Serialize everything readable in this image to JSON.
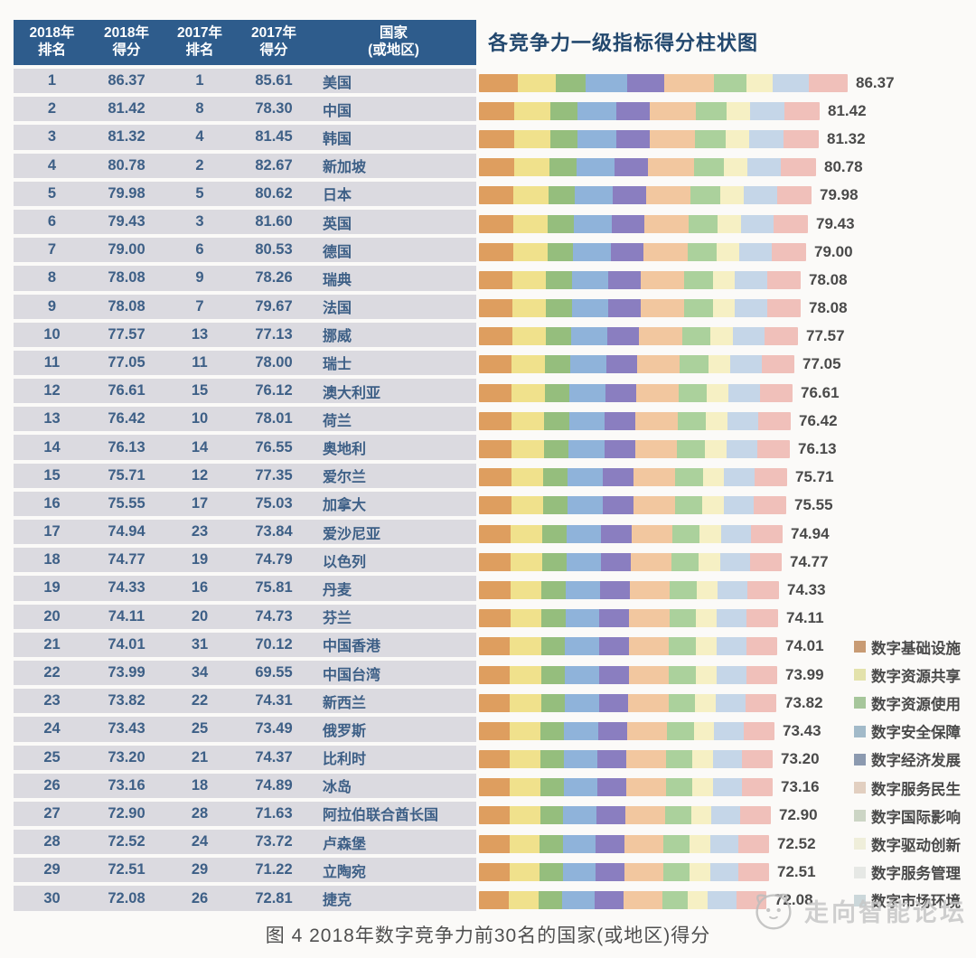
{
  "page": {
    "background": "#fbfaf8"
  },
  "table": {
    "header_bg": "#2e5c8c",
    "headers": [
      {
        "line1": "2018年",
        "line2": "排名"
      },
      {
        "line1": "2018年",
        "line2": "得分"
      },
      {
        "line1": "2017年",
        "line2": "排名"
      },
      {
        "line1": "2017年",
        "line2": "得分"
      },
      {
        "line1": "国家",
        "line2": "(或地区)"
      }
    ],
    "rows": [
      {
        "rank2018": "1",
        "score2018": "86.37",
        "rank2017": "1",
        "score2017": "85.61",
        "country": "美国"
      },
      {
        "rank2018": "2",
        "score2018": "81.42",
        "rank2017": "8",
        "score2017": "78.30",
        "country": "中国"
      },
      {
        "rank2018": "3",
        "score2018": "81.32",
        "rank2017": "4",
        "score2017": "81.45",
        "country": "韩国"
      },
      {
        "rank2018": "4",
        "score2018": "80.78",
        "rank2017": "2",
        "score2017": "82.67",
        "country": "新加坡"
      },
      {
        "rank2018": "5",
        "score2018": "79.98",
        "rank2017": "5",
        "score2017": "80.62",
        "country": "日本"
      },
      {
        "rank2018": "6",
        "score2018": "79.43",
        "rank2017": "3",
        "score2017": "81.60",
        "country": "英国"
      },
      {
        "rank2018": "7",
        "score2018": "79.00",
        "rank2017": "6",
        "score2017": "80.53",
        "country": "德国"
      },
      {
        "rank2018": "8",
        "score2018": "78.08",
        "rank2017": "9",
        "score2017": "78.26",
        "country": "瑞典"
      },
      {
        "rank2018": "9",
        "score2018": "78.08",
        "rank2017": "7",
        "score2017": "79.67",
        "country": "法国"
      },
      {
        "rank2018": "10",
        "score2018": "77.57",
        "rank2017": "13",
        "score2017": "77.13",
        "country": "挪威"
      },
      {
        "rank2018": "11",
        "score2018": "77.05",
        "rank2017": "11",
        "score2017": "78.00",
        "country": "瑞士"
      },
      {
        "rank2018": "12",
        "score2018": "76.61",
        "rank2017": "15",
        "score2017": "76.12",
        "country": "澳大利亚"
      },
      {
        "rank2018": "13",
        "score2018": "76.42",
        "rank2017": "10",
        "score2017": "78.01",
        "country": "荷兰"
      },
      {
        "rank2018": "14",
        "score2018": "76.13",
        "rank2017": "14",
        "score2017": "76.55",
        "country": "奥地利"
      },
      {
        "rank2018": "15",
        "score2018": "75.71",
        "rank2017": "12",
        "score2017": "77.35",
        "country": "爱尔兰"
      },
      {
        "rank2018": "16",
        "score2018": "75.55",
        "rank2017": "17",
        "score2017": "75.03",
        "country": "加拿大"
      },
      {
        "rank2018": "17",
        "score2018": "74.94",
        "rank2017": "23",
        "score2017": "73.84",
        "country": "爱沙尼亚"
      },
      {
        "rank2018": "18",
        "score2018": "74.77",
        "rank2017": "19",
        "score2017": "74.79",
        "country": "以色列"
      },
      {
        "rank2018": "19",
        "score2018": "74.33",
        "rank2017": "16",
        "score2017": "75.81",
        "country": "丹麦"
      },
      {
        "rank2018": "20",
        "score2018": "74.11",
        "rank2017": "20",
        "score2017": "74.73",
        "country": "芬兰"
      },
      {
        "rank2018": "21",
        "score2018": "74.01",
        "rank2017": "31",
        "score2017": "70.12",
        "country": "中国香港"
      },
      {
        "rank2018": "22",
        "score2018": "73.99",
        "rank2017": "34",
        "score2017": "69.55",
        "country": "中国台湾"
      },
      {
        "rank2018": "23",
        "score2018": "73.82",
        "rank2017": "22",
        "score2017": "74.31",
        "country": "新西兰"
      },
      {
        "rank2018": "24",
        "score2018": "73.43",
        "rank2017": "25",
        "score2017": "73.49",
        "country": "俄罗斯"
      },
      {
        "rank2018": "25",
        "score2018": "73.20",
        "rank2017": "21",
        "score2017": "74.37",
        "country": "比利时"
      },
      {
        "rank2018": "26",
        "score2018": "73.16",
        "rank2017": "18",
        "score2017": "74.89",
        "country": "冰岛"
      },
      {
        "rank2018": "27",
        "score2018": "72.90",
        "rank2017": "28",
        "score2017": "71.63",
        "country": "阿拉伯联合酋长国"
      },
      {
        "rank2018": "28",
        "score2018": "72.52",
        "rank2017": "24",
        "score2017": "73.72",
        "country": "卢森堡"
      },
      {
        "rank2018": "29",
        "score2018": "72.51",
        "rank2017": "29",
        "score2017": "71.22",
        "country": "立陶宛"
      },
      {
        "rank2018": "30",
        "score2018": "72.08",
        "rank2017": "26",
        "score2017": "72.81",
        "country": "捷克"
      }
    ]
  },
  "chart": {
    "title": "各竞争力一级指标得分柱状图",
    "legend": [
      {
        "label": "数字基础设施",
        "color": "#de9e5f",
        "legend_color": "#c89b74"
      },
      {
        "label": "数字资源共享",
        "color": "#f0e18c",
        "legend_color": "#e3e2ab"
      },
      {
        "label": "数字资源使用",
        "color": "#95be7d",
        "legend_color": "#a6c69b"
      },
      {
        "label": "数字安全保障",
        "color": "#8fb3da",
        "legend_color": "#a2bac9"
      },
      {
        "label": "数字经济发展",
        "color": "#8a7ec0",
        "legend_color": "#8c9ab0"
      },
      {
        "label": "数字服务民生",
        "color": "#f2c79f",
        "legend_color": "#e2cfc0"
      },
      {
        "label": "数字国际影响",
        "color": "#abd19c",
        "legend_color": "#ccd5c5"
      },
      {
        "label": "数字驱动创新",
        "color": "#f6f0c4",
        "legend_color": "#efeeda"
      },
      {
        "label": "数字服务管理",
        "color": "#c5d6e8",
        "legend_color": "#e6e8e5"
      },
      {
        "label": "数字市场环境",
        "color": "#f0c0ba",
        "legend_color": "#cbd7da"
      }
    ]
  },
  "caption": "图 4 2018年数字竞争力前30名的国家(或地区)得分",
  "watermark": {
    "text": "走向智能论坛"
  },
  "chart_data": {
    "type": "bar",
    "subtype": "horizontal_stacked",
    "title": "各竞争力一级指标得分柱状图",
    "categories": [
      "美国",
      "中国",
      "韩国",
      "新加坡",
      "日本",
      "英国",
      "德国",
      "瑞典",
      "法国",
      "挪威",
      "瑞士",
      "澳大利亚",
      "荷兰",
      "奥地利",
      "爱尔兰",
      "加拿大",
      "爱沙尼亚",
      "以色列",
      "丹麦",
      "芬兰",
      "中国香港",
      "中国台湾",
      "新西兰",
      "俄罗斯",
      "比利时",
      "冰岛",
      "阿拉伯联合酋长国",
      "卢森堡",
      "立陶宛",
      "捷克"
    ],
    "values": [
      86.37,
      81.42,
      81.32,
      80.78,
      79.98,
      79.43,
      79.0,
      78.08,
      78.08,
      77.57,
      77.05,
      76.61,
      76.42,
      76.13,
      75.71,
      75.55,
      74.94,
      74.77,
      74.33,
      74.11,
      74.01,
      73.99,
      73.82,
      73.43,
      73.2,
      73.16,
      72.9,
      72.52,
      72.51,
      72.08
    ],
    "stack_series": [
      "数字基础设施",
      "数字资源共享",
      "数字资源使用",
      "数字安全保障",
      "数字经济发展",
      "数字服务民生",
      "数字国际影响",
      "数字驱动创新",
      "数字服务管理",
      "数字市场环境"
    ],
    "value_labels_shown": true,
    "legend_position": "right-bottom",
    "grid": false,
    "companion_table": {
      "columns": [
        "2018年排名",
        "2018年得分",
        "2017年排名",
        "2017年得分",
        "国家(或地区)"
      ],
      "ranks_2018": [
        1,
        2,
        3,
        4,
        5,
        6,
        7,
        8,
        9,
        10,
        11,
        12,
        13,
        14,
        15,
        16,
        17,
        18,
        19,
        20,
        21,
        22,
        23,
        24,
        25,
        26,
        27,
        28,
        29,
        30
      ],
      "ranks_2017": [
        1,
        8,
        4,
        2,
        5,
        3,
        6,
        9,
        7,
        13,
        11,
        15,
        10,
        14,
        12,
        17,
        23,
        19,
        16,
        20,
        31,
        34,
        22,
        25,
        21,
        18,
        28,
        24,
        29,
        26
      ],
      "scores_2017": [
        85.61,
        78.3,
        81.45,
        82.67,
        80.62,
        81.6,
        80.53,
        78.26,
        79.67,
        77.13,
        78.0,
        76.12,
        78.01,
        76.55,
        77.35,
        75.03,
        73.84,
        74.79,
        75.81,
        74.73,
        70.12,
        69.55,
        74.31,
        73.49,
        74.37,
        74.89,
        71.63,
        73.72,
        71.22,
        72.81
      ]
    }
  }
}
